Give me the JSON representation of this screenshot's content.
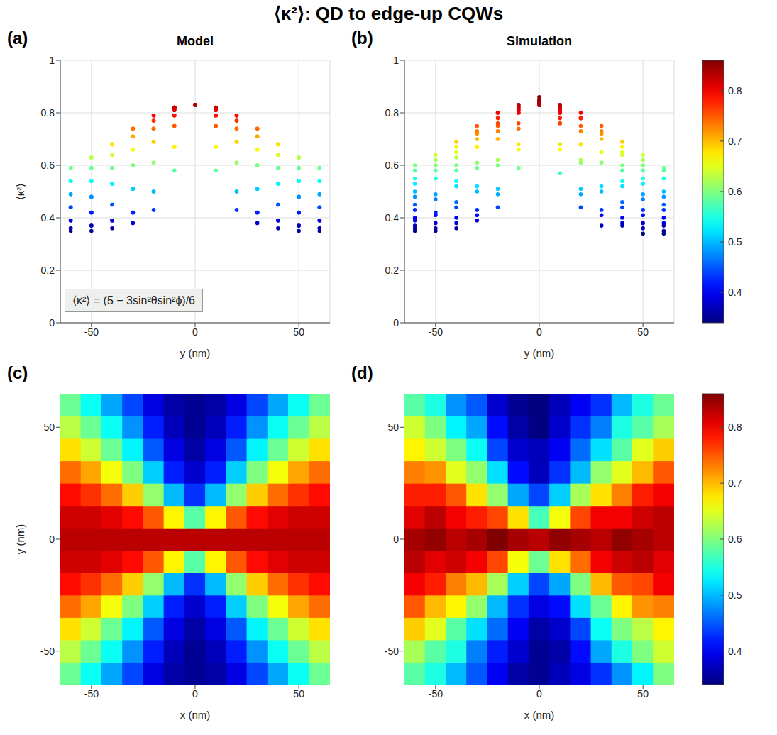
{
  "title": "⟨κ²⟩: QD to edge-up CQWs",
  "colorbar": {
    "range": [
      0.34,
      0.86
    ],
    "ticks": [
      0.4,
      0.5,
      0.6,
      0.7,
      0.8
    ]
  },
  "chart_data": [
    {
      "type": "surface",
      "label": "(a)",
      "title": "Model",
      "x_label": "y (nm)",
      "y_label": "⟨κ²⟩",
      "annotation": "⟨κ²⟩ = (5 − 3sin²θsin²ϕ)/6",
      "grid": true,
      "xlim": [
        -65,
        65
      ],
      "xticks": [
        -50,
        0,
        50
      ],
      "ylim": [
        0,
        1
      ],
      "yticks": [
        0,
        0.2,
        0.4,
        0.6,
        0.8,
        1
      ],
      "x": [
        -60,
        -50,
        -40,
        -30,
        -20,
        -10,
        0,
        10,
        20,
        30,
        40,
        50,
        60
      ],
      "y": [
        -60,
        -50,
        -40,
        -30,
        -20,
        -10,
        0,
        10,
        20,
        30,
        40,
        50,
        60
      ],
      "values": [
        [
          0.59,
          0.54,
          0.49,
          0.44,
          0.39,
          0.36,
          0.35,
          0.36,
          0.39,
          0.44,
          0.49,
          0.54,
          0.59
        ],
        [
          0.63,
          0.59,
          0.54,
          0.48,
          0.42,
          0.37,
          0.35,
          0.37,
          0.42,
          0.48,
          0.54,
          0.59,
          0.63
        ],
        [
          0.68,
          0.64,
          0.59,
          0.53,
          0.45,
          0.39,
          0.36,
          0.39,
          0.45,
          0.53,
          0.59,
          0.64,
          0.68
        ],
        [
          0.74,
          0.71,
          0.66,
          0.6,
          0.51,
          0.42,
          0.38,
          0.42,
          0.51,
          0.6,
          0.66,
          0.71,
          0.74
        ],
        [
          0.79,
          0.77,
          0.74,
          0.69,
          0.61,
          0.5,
          0.43,
          0.5,
          0.61,
          0.69,
          0.74,
          0.77,
          0.79
        ],
        [
          0.82,
          0.82,
          0.81,
          0.79,
          0.75,
          0.67,
          0.58,
          0.67,
          0.75,
          0.79,
          0.81,
          0.82,
          0.82
        ],
        [
          0.83,
          0.83,
          0.83,
          0.83,
          0.83,
          0.83,
          0.83,
          0.83,
          0.83,
          0.83,
          0.83,
          0.83,
          0.83
        ],
        [
          0.82,
          0.82,
          0.81,
          0.79,
          0.75,
          0.67,
          0.58,
          0.67,
          0.75,
          0.79,
          0.81,
          0.82,
          0.82
        ],
        [
          0.79,
          0.77,
          0.74,
          0.69,
          0.61,
          0.5,
          0.43,
          0.5,
          0.61,
          0.69,
          0.74,
          0.77,
          0.79
        ],
        [
          0.74,
          0.71,
          0.66,
          0.6,
          0.51,
          0.42,
          0.38,
          0.42,
          0.51,
          0.6,
          0.66,
          0.71,
          0.74
        ],
        [
          0.68,
          0.64,
          0.59,
          0.53,
          0.45,
          0.39,
          0.36,
          0.39,
          0.45,
          0.53,
          0.59,
          0.64,
          0.68
        ],
        [
          0.63,
          0.59,
          0.54,
          0.48,
          0.42,
          0.37,
          0.35,
          0.37,
          0.42,
          0.48,
          0.54,
          0.59,
          0.63
        ],
        [
          0.59,
          0.54,
          0.49,
          0.44,
          0.39,
          0.36,
          0.35,
          0.36,
          0.39,
          0.44,
          0.49,
          0.54,
          0.59
        ]
      ]
    },
    {
      "type": "surface",
      "label": "(b)",
      "title": "Simulation",
      "x_label": "y (nm)",
      "grid": true,
      "xlim": [
        -65,
        65
      ],
      "xticks": [
        -50,
        0,
        50
      ],
      "ylim": [
        0,
        1
      ],
      "yticks": [
        0,
        0.2,
        0.4,
        0.6,
        0.8,
        1
      ],
      "x": [
        -60,
        -50,
        -40,
        -30,
        -20,
        -10,
        0,
        10,
        20,
        30,
        40,
        50,
        60
      ],
      "y": [
        -60,
        -50,
        -40,
        -30,
        -20,
        -10,
        0,
        10,
        20,
        30,
        40,
        50,
        60
      ],
      "values": [
        [
          0.58,
          0.55,
          0.5,
          0.45,
          0.4,
          0.36,
          0.35,
          0.37,
          0.39,
          0.43,
          0.48,
          0.53,
          0.6
        ],
        [
          0.62,
          0.58,
          0.55,
          0.47,
          0.42,
          0.38,
          0.35,
          0.36,
          0.41,
          0.49,
          0.55,
          0.6,
          0.64
        ],
        [
          0.69,
          0.65,
          0.58,
          0.52,
          0.46,
          0.4,
          0.36,
          0.38,
          0.44,
          0.54,
          0.6,
          0.63,
          0.67
        ],
        [
          0.75,
          0.7,
          0.67,
          0.61,
          0.5,
          0.43,
          0.39,
          0.41,
          0.52,
          0.59,
          0.67,
          0.72,
          0.73
        ],
        [
          0.8,
          0.78,
          0.73,
          0.7,
          0.62,
          0.51,
          0.44,
          0.49,
          0.6,
          0.7,
          0.75,
          0.76,
          0.8
        ],
        [
          0.83,
          0.81,
          0.82,
          0.8,
          0.76,
          0.66,
          0.59,
          0.68,
          0.74,
          0.8,
          0.82,
          0.83,
          0.81
        ],
        [
          0.84,
          0.85,
          0.83,
          0.84,
          0.86,
          0.84,
          0.83,
          0.85,
          0.84,
          0.83,
          0.85,
          0.84,
          0.83
        ],
        [
          0.81,
          0.83,
          0.8,
          0.78,
          0.76,
          0.68,
          0.57,
          0.66,
          0.76,
          0.8,
          0.8,
          0.82,
          0.83
        ],
        [
          0.78,
          0.78,
          0.75,
          0.68,
          0.61,
          0.49,
          0.44,
          0.51,
          0.62,
          0.68,
          0.73,
          0.78,
          0.8
        ],
        [
          0.73,
          0.72,
          0.65,
          0.61,
          0.52,
          0.41,
          0.37,
          0.43,
          0.5,
          0.61,
          0.65,
          0.7,
          0.75
        ],
        [
          0.67,
          0.64,
          0.6,
          0.54,
          0.44,
          0.38,
          0.37,
          0.4,
          0.46,
          0.52,
          0.58,
          0.65,
          0.69
        ],
        [
          0.64,
          0.6,
          0.53,
          0.49,
          0.41,
          0.36,
          0.34,
          0.38,
          0.43,
          0.47,
          0.55,
          0.58,
          0.62
        ],
        [
          0.58,
          0.55,
          0.48,
          0.45,
          0.38,
          0.35,
          0.34,
          0.37,
          0.4,
          0.43,
          0.5,
          0.55,
          0.59
        ]
      ]
    },
    {
      "type": "heatmap",
      "label": "(c)",
      "x_label": "x (nm)",
      "y_label": "y (nm)",
      "xlim": [
        -65,
        65
      ],
      "xticks": [
        -50,
        0,
        50
      ],
      "ylim": [
        -65,
        65
      ],
      "yticks": [
        -50,
        0,
        50
      ],
      "x": [
        -60,
        -50,
        -40,
        -30,
        -20,
        -10,
        0,
        10,
        20,
        30,
        40,
        50,
        60
      ],
      "y": [
        -60,
        -50,
        -40,
        -30,
        -20,
        -10,
        0,
        10,
        20,
        30,
        40,
        50,
        60
      ],
      "values": [
        [
          0.59,
          0.54,
          0.49,
          0.44,
          0.39,
          0.36,
          0.35,
          0.36,
          0.39,
          0.44,
          0.49,
          0.54,
          0.59
        ],
        [
          0.63,
          0.59,
          0.54,
          0.48,
          0.42,
          0.37,
          0.35,
          0.37,
          0.42,
          0.48,
          0.54,
          0.59,
          0.63
        ],
        [
          0.68,
          0.64,
          0.59,
          0.53,
          0.45,
          0.39,
          0.36,
          0.39,
          0.45,
          0.53,
          0.59,
          0.64,
          0.68
        ],
        [
          0.74,
          0.71,
          0.66,
          0.6,
          0.51,
          0.42,
          0.38,
          0.42,
          0.51,
          0.6,
          0.66,
          0.71,
          0.74
        ],
        [
          0.79,
          0.77,
          0.74,
          0.69,
          0.61,
          0.5,
          0.43,
          0.5,
          0.61,
          0.69,
          0.74,
          0.77,
          0.79
        ],
        [
          0.82,
          0.82,
          0.81,
          0.79,
          0.75,
          0.67,
          0.58,
          0.67,
          0.75,
          0.79,
          0.81,
          0.82,
          0.82
        ],
        [
          0.83,
          0.83,
          0.83,
          0.83,
          0.83,
          0.83,
          0.83,
          0.83,
          0.83,
          0.83,
          0.83,
          0.83,
          0.83
        ],
        [
          0.82,
          0.82,
          0.81,
          0.79,
          0.75,
          0.67,
          0.58,
          0.67,
          0.75,
          0.79,
          0.81,
          0.82,
          0.82
        ],
        [
          0.79,
          0.77,
          0.74,
          0.69,
          0.61,
          0.5,
          0.43,
          0.5,
          0.61,
          0.69,
          0.74,
          0.77,
          0.79
        ],
        [
          0.74,
          0.71,
          0.66,
          0.6,
          0.51,
          0.42,
          0.38,
          0.42,
          0.51,
          0.6,
          0.66,
          0.71,
          0.74
        ],
        [
          0.68,
          0.64,
          0.59,
          0.53,
          0.45,
          0.39,
          0.36,
          0.39,
          0.45,
          0.53,
          0.59,
          0.64,
          0.68
        ],
        [
          0.63,
          0.59,
          0.54,
          0.48,
          0.42,
          0.37,
          0.35,
          0.37,
          0.42,
          0.48,
          0.54,
          0.59,
          0.63
        ],
        [
          0.59,
          0.54,
          0.49,
          0.44,
          0.39,
          0.36,
          0.35,
          0.36,
          0.39,
          0.44,
          0.49,
          0.54,
          0.59
        ]
      ]
    },
    {
      "type": "heatmap",
      "label": "(d)",
      "x_label": "x (nm)",
      "xlim": [
        -65,
        65
      ],
      "xticks": [
        -50,
        0,
        50
      ],
      "ylim": [
        -65,
        65
      ],
      "yticks": [
        -50,
        0,
        50
      ],
      "x": [
        -60,
        -50,
        -40,
        -30,
        -20,
        -10,
        0,
        10,
        20,
        30,
        40,
        50,
        60
      ],
      "y": [
        -60,
        -50,
        -40,
        -30,
        -20,
        -10,
        0,
        10,
        20,
        30,
        40,
        50,
        60
      ],
      "values": [
        [
          0.58,
          0.55,
          0.5,
          0.45,
          0.4,
          0.36,
          0.35,
          0.37,
          0.39,
          0.43,
          0.48,
          0.53,
          0.6
        ],
        [
          0.62,
          0.58,
          0.55,
          0.47,
          0.42,
          0.38,
          0.35,
          0.36,
          0.41,
          0.49,
          0.55,
          0.6,
          0.64
        ],
        [
          0.69,
          0.65,
          0.58,
          0.52,
          0.46,
          0.4,
          0.36,
          0.38,
          0.44,
          0.54,
          0.6,
          0.63,
          0.67
        ],
        [
          0.75,
          0.7,
          0.67,
          0.61,
          0.5,
          0.43,
          0.39,
          0.41,
          0.52,
          0.59,
          0.67,
          0.72,
          0.73
        ],
        [
          0.8,
          0.78,
          0.73,
          0.7,
          0.62,
          0.51,
          0.44,
          0.49,
          0.6,
          0.7,
          0.75,
          0.76,
          0.8
        ],
        [
          0.83,
          0.81,
          0.82,
          0.8,
          0.76,
          0.66,
          0.59,
          0.68,
          0.74,
          0.8,
          0.82,
          0.83,
          0.81
        ],
        [
          0.84,
          0.85,
          0.83,
          0.84,
          0.86,
          0.84,
          0.83,
          0.85,
          0.84,
          0.83,
          0.85,
          0.84,
          0.83
        ],
        [
          0.81,
          0.83,
          0.8,
          0.78,
          0.76,
          0.68,
          0.57,
          0.66,
          0.76,
          0.8,
          0.8,
          0.82,
          0.83
        ],
        [
          0.78,
          0.78,
          0.75,
          0.68,
          0.61,
          0.49,
          0.44,
          0.51,
          0.62,
          0.68,
          0.73,
          0.78,
          0.8
        ],
        [
          0.73,
          0.72,
          0.65,
          0.61,
          0.52,
          0.41,
          0.37,
          0.43,
          0.5,
          0.61,
          0.65,
          0.7,
          0.75
        ],
        [
          0.67,
          0.64,
          0.6,
          0.54,
          0.44,
          0.38,
          0.37,
          0.4,
          0.46,
          0.52,
          0.58,
          0.65,
          0.69
        ],
        [
          0.64,
          0.6,
          0.53,
          0.49,
          0.41,
          0.36,
          0.34,
          0.38,
          0.43,
          0.47,
          0.55,
          0.58,
          0.62
        ],
        [
          0.58,
          0.55,
          0.48,
          0.45,
          0.38,
          0.35,
          0.34,
          0.37,
          0.4,
          0.43,
          0.5,
          0.55,
          0.59
        ]
      ]
    }
  ]
}
